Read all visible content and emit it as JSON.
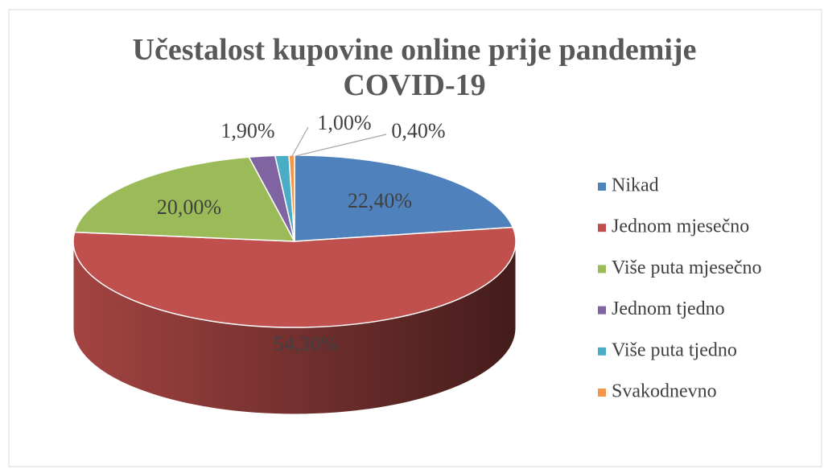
{
  "chart_data": {
    "type": "pie",
    "title": "Učestalost kupovine online prije pandemije COVID-19",
    "categories": [
      "Nikad",
      "Jednom mjesečno",
      "Više puta mjesečno",
      "Jednom tjedno",
      "Više puta tjedno",
      "Svakodnevno"
    ],
    "values": [
      22.4,
      54.3,
      20.0,
      1.9,
      1.0,
      0.4
    ],
    "value_labels": [
      "22,40%",
      "54,30%",
      "20,00%",
      "1,90%",
      "1,00%",
      "0,40%"
    ],
    "colors": [
      "#4f81bd",
      "#c0504d",
      "#9bbb59",
      "#8064a2",
      "#4bacc6",
      "#f79646"
    ],
    "legend": "right"
  }
}
